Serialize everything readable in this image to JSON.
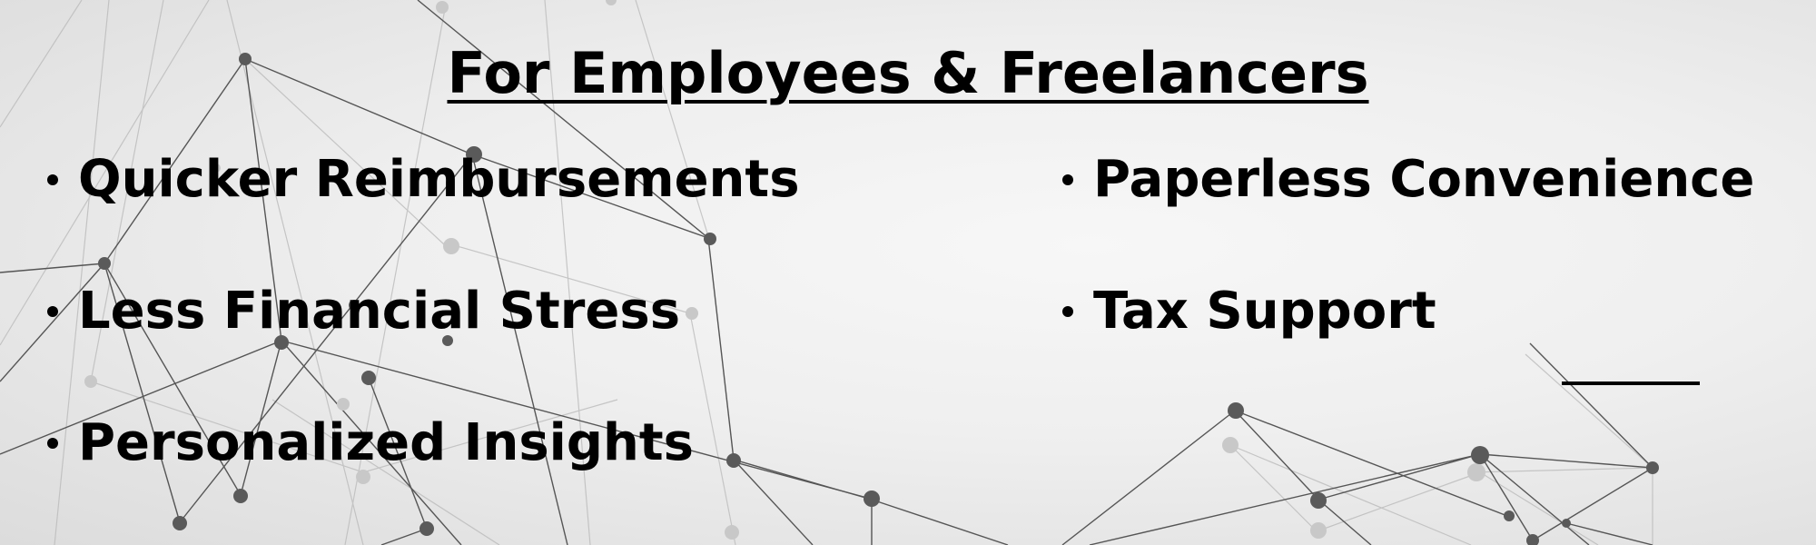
{
  "title": "For Employees & Freelancers",
  "left_items": [
    "Quicker Reimbursements",
    "Less Financial Stress",
    "Personalized Insights"
  ],
  "right_items": [
    "Paperless Convenience",
    "Tax Support"
  ],
  "colors": {
    "text": "#000000",
    "background": "#efefef",
    "network_line": "#555555",
    "network_node": "#555555"
  }
}
